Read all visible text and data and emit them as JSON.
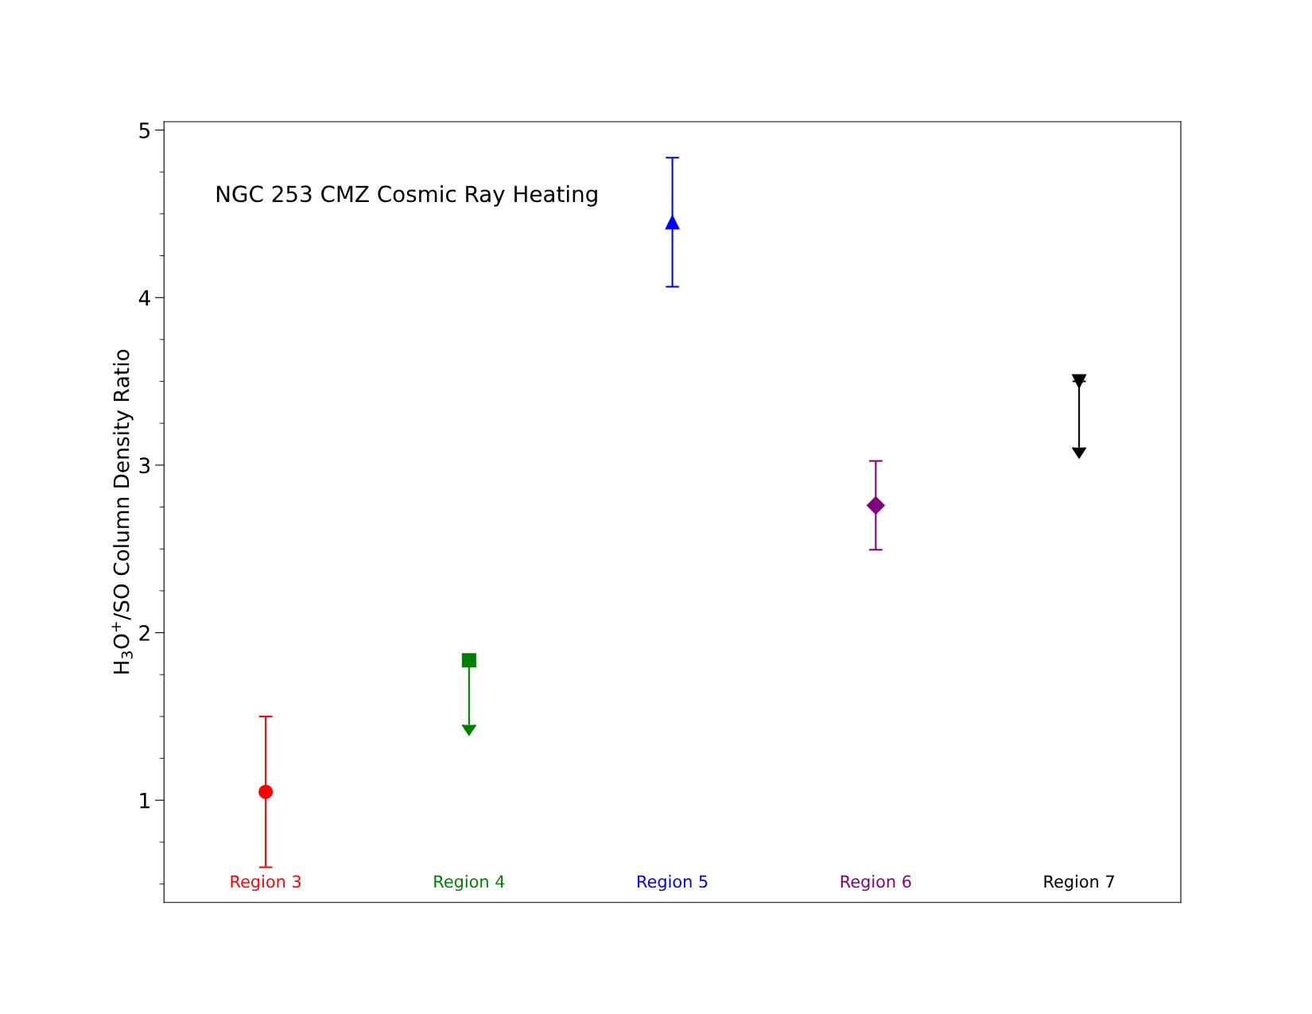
{
  "chart_data": {
    "type": "scatter",
    "title": "NGC 253 CMZ Cosmic Ray Heating",
    "ylabel": "H$_{3}$O$^{+}$/SO Column Density Ratio",
    "categories": [
      "Region 3",
      "Region 4",
      "Region 5",
      "Region 6",
      "Region 7"
    ],
    "series": [
      {
        "color": "#ff0000",
        "marker": "circle",
        "values": [
          1.05,
          null,
          null,
          null,
          null
        ],
        "errors": [
          [
            0.6,
            1.5
          ],
          null,
          null,
          null,
          null
        ]
      },
      {
        "color": "#008000",
        "marker": "square",
        "values": [
          null,
          1.835,
          null,
          null,
          null
        ],
        "errors": [
          null,
          [
            1.45,
            1.835
          ],
          null,
          null,
          null
        ]
      },
      {
        "color": "#0000ff",
        "marker": "triangle",
        "values": [
          null,
          null,
          4.45,
          null,
          null
        ],
        "errors": [
          null,
          null,
          [
            4.065,
            4.835
          ],
          null,
          null
        ]
      },
      {
        "color": "#800080",
        "marker": "diamond",
        "values": [
          null,
          null,
          null,
          2.76,
          null
        ],
        "errors": [
          null,
          null,
          null,
          [
            2.495,
            3.025
          ],
          null
        ]
      },
      {
        "color": "#000000",
        "marker": "triangle_down",
        "values": [
          null,
          null,
          null,
          null,
          3.5
        ],
        "errors": [
          null,
          null,
          null,
          null,
          [
            3.105,
            3.5
          ]
        ]
      }
    ],
    "ylim": [
      0.39,
      5.05
    ],
    "yticks": [
      {
        "value": 0.5,
        "label": null
      },
      {
        "value": 0.75,
        "label": null
      },
      1,
      {
        "value": 1.25,
        "label": null
      },
      {
        "value": 1.5,
        "label": null
      },
      {
        "value": 1.75,
        "label": null
      },
      2,
      {
        "value": 2.25,
        "label": null
      },
      {
        "value": 2.5,
        "label": null
      },
      {
        "value": 2.75,
        "label": null
      },
      3,
      {
        "value": 3.25,
        "label": null
      },
      {
        "value": 3.5,
        "label": null
      },
      {
        "value": 3.75,
        "label": null
      },
      4,
      {
        "value": 4.25,
        "label": null
      },
      {
        "value": 4.5,
        "label": null
      },
      {
        "value": 4.75,
        "label": null
      },
      5
    ],
    "tick_labels": "y",
    "grid": false,
    "legend": false
  }
}
